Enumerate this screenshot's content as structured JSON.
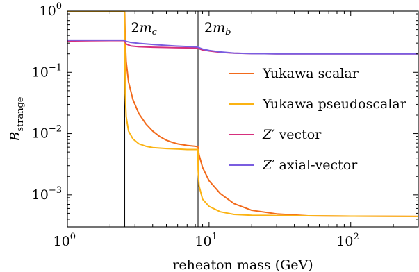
{
  "chart_data": {
    "type": "line",
    "xscale": "log",
    "yscale": "log",
    "xlim": [
      1,
      300
    ],
    "ylim": [
      0.0003,
      1.0
    ],
    "xlabel": "reheaton mass (GeV)",
    "ylabel": {
      "base": "B",
      "sub": "strange"
    },
    "x_ticks": [
      {
        "value": 1,
        "base": "10",
        "exp": "0"
      },
      {
        "value": 10,
        "base": "10",
        "exp": "1"
      },
      {
        "value": 100,
        "base": "10",
        "exp": "2"
      }
    ],
    "y_ticks": [
      {
        "value": 1,
        "base": "10",
        "exp": "0"
      },
      {
        "value": 0.1,
        "base": "10",
        "exp": "−1"
      },
      {
        "value": 0.01,
        "base": "10",
        "exp": "−2"
      },
      {
        "value": 0.001,
        "base": "10",
        "exp": "−3"
      }
    ],
    "thresholds": [
      {
        "x": 2.54,
        "label": "2m",
        "sub": "c"
      },
      {
        "x": 8.36,
        "label": "2m",
        "sub": "b"
      }
    ],
    "legend_position": "right",
    "series": [
      {
        "name": "Yukawa scalar",
        "color": "#f26a1b",
        "x": [
          1,
          2.0,
          2.53,
          2.54,
          2.56,
          2.6,
          2.7,
          2.9,
          3.2,
          3.6,
          4.0,
          4.5,
          5.0,
          5.5,
          6.0,
          7.0,
          8.0,
          8.35,
          8.37,
          8.5,
          9.0,
          10,
          12,
          15,
          20,
          30,
          50,
          100,
          300
        ],
        "y": [
          1.0,
          1.0,
          1.0,
          0.9,
          0.35,
          0.15,
          0.07,
          0.036,
          0.021,
          0.0142,
          0.011,
          0.0089,
          0.0078,
          0.0072,
          0.0068,
          0.0064,
          0.0062,
          0.0061,
          0.0058,
          0.0045,
          0.0028,
          0.0017,
          0.00105,
          0.00072,
          0.00056,
          0.00049,
          0.000455,
          0.00045,
          0.000445
        ]
      },
      {
        "name": "Yukawa pseudoscalar",
        "color": "#fbb313",
        "x": [
          1,
          2.0,
          2.53,
          2.54,
          2.56,
          2.6,
          2.7,
          2.9,
          3.2,
          3.6,
          4.0,
          5.0,
          6.0,
          7.0,
          8.0,
          8.35,
          8.37,
          8.5,
          9.0,
          10,
          12,
          15,
          20,
          30,
          50,
          100,
          300
        ],
        "y": [
          1.0,
          1.0,
          1.0,
          0.6,
          0.045,
          0.019,
          0.011,
          0.0082,
          0.0068,
          0.0062,
          0.0059,
          0.0057,
          0.0056,
          0.0055,
          0.0055,
          0.0055,
          0.0026,
          0.0014,
          0.00085,
          0.00065,
          0.00053,
          0.00048,
          0.000465,
          0.00046,
          0.000455,
          0.00045,
          0.000445
        ]
      },
      {
        "name": "Z′ vector",
        "color": "#d62f7d",
        "x": [
          1,
          2.0,
          2.53,
          2.6,
          2.8,
          3.2,
          4.0,
          5.0,
          6.0,
          8.0,
          8.35,
          8.6,
          9.0,
          10,
          12,
          15,
          20,
          30,
          50,
          100,
          300
        ],
        "y": [
          0.325,
          0.33,
          0.33,
          0.29,
          0.27,
          0.262,
          0.257,
          0.254,
          0.252,
          0.25,
          0.25,
          0.24,
          0.232,
          0.223,
          0.212,
          0.205,
          0.202,
          0.2,
          0.2,
          0.2,
          0.2
        ]
      },
      {
        "name": "Z′ axial-vector",
        "color": "#7a5de0",
        "x": [
          1,
          2.0,
          2.53,
          2.6,
          2.8,
          3.2,
          4.0,
          5.0,
          6.0,
          8.0,
          8.35,
          8.6,
          9.0,
          10,
          12,
          15,
          20,
          30,
          50,
          100,
          300
        ],
        "y": [
          0.335,
          0.335,
          0.335,
          0.32,
          0.308,
          0.297,
          0.285,
          0.275,
          0.268,
          0.26,
          0.258,
          0.25,
          0.24,
          0.228,
          0.215,
          0.206,
          0.202,
          0.2,
          0.2,
          0.2,
          0.2
        ]
      }
    ]
  }
}
